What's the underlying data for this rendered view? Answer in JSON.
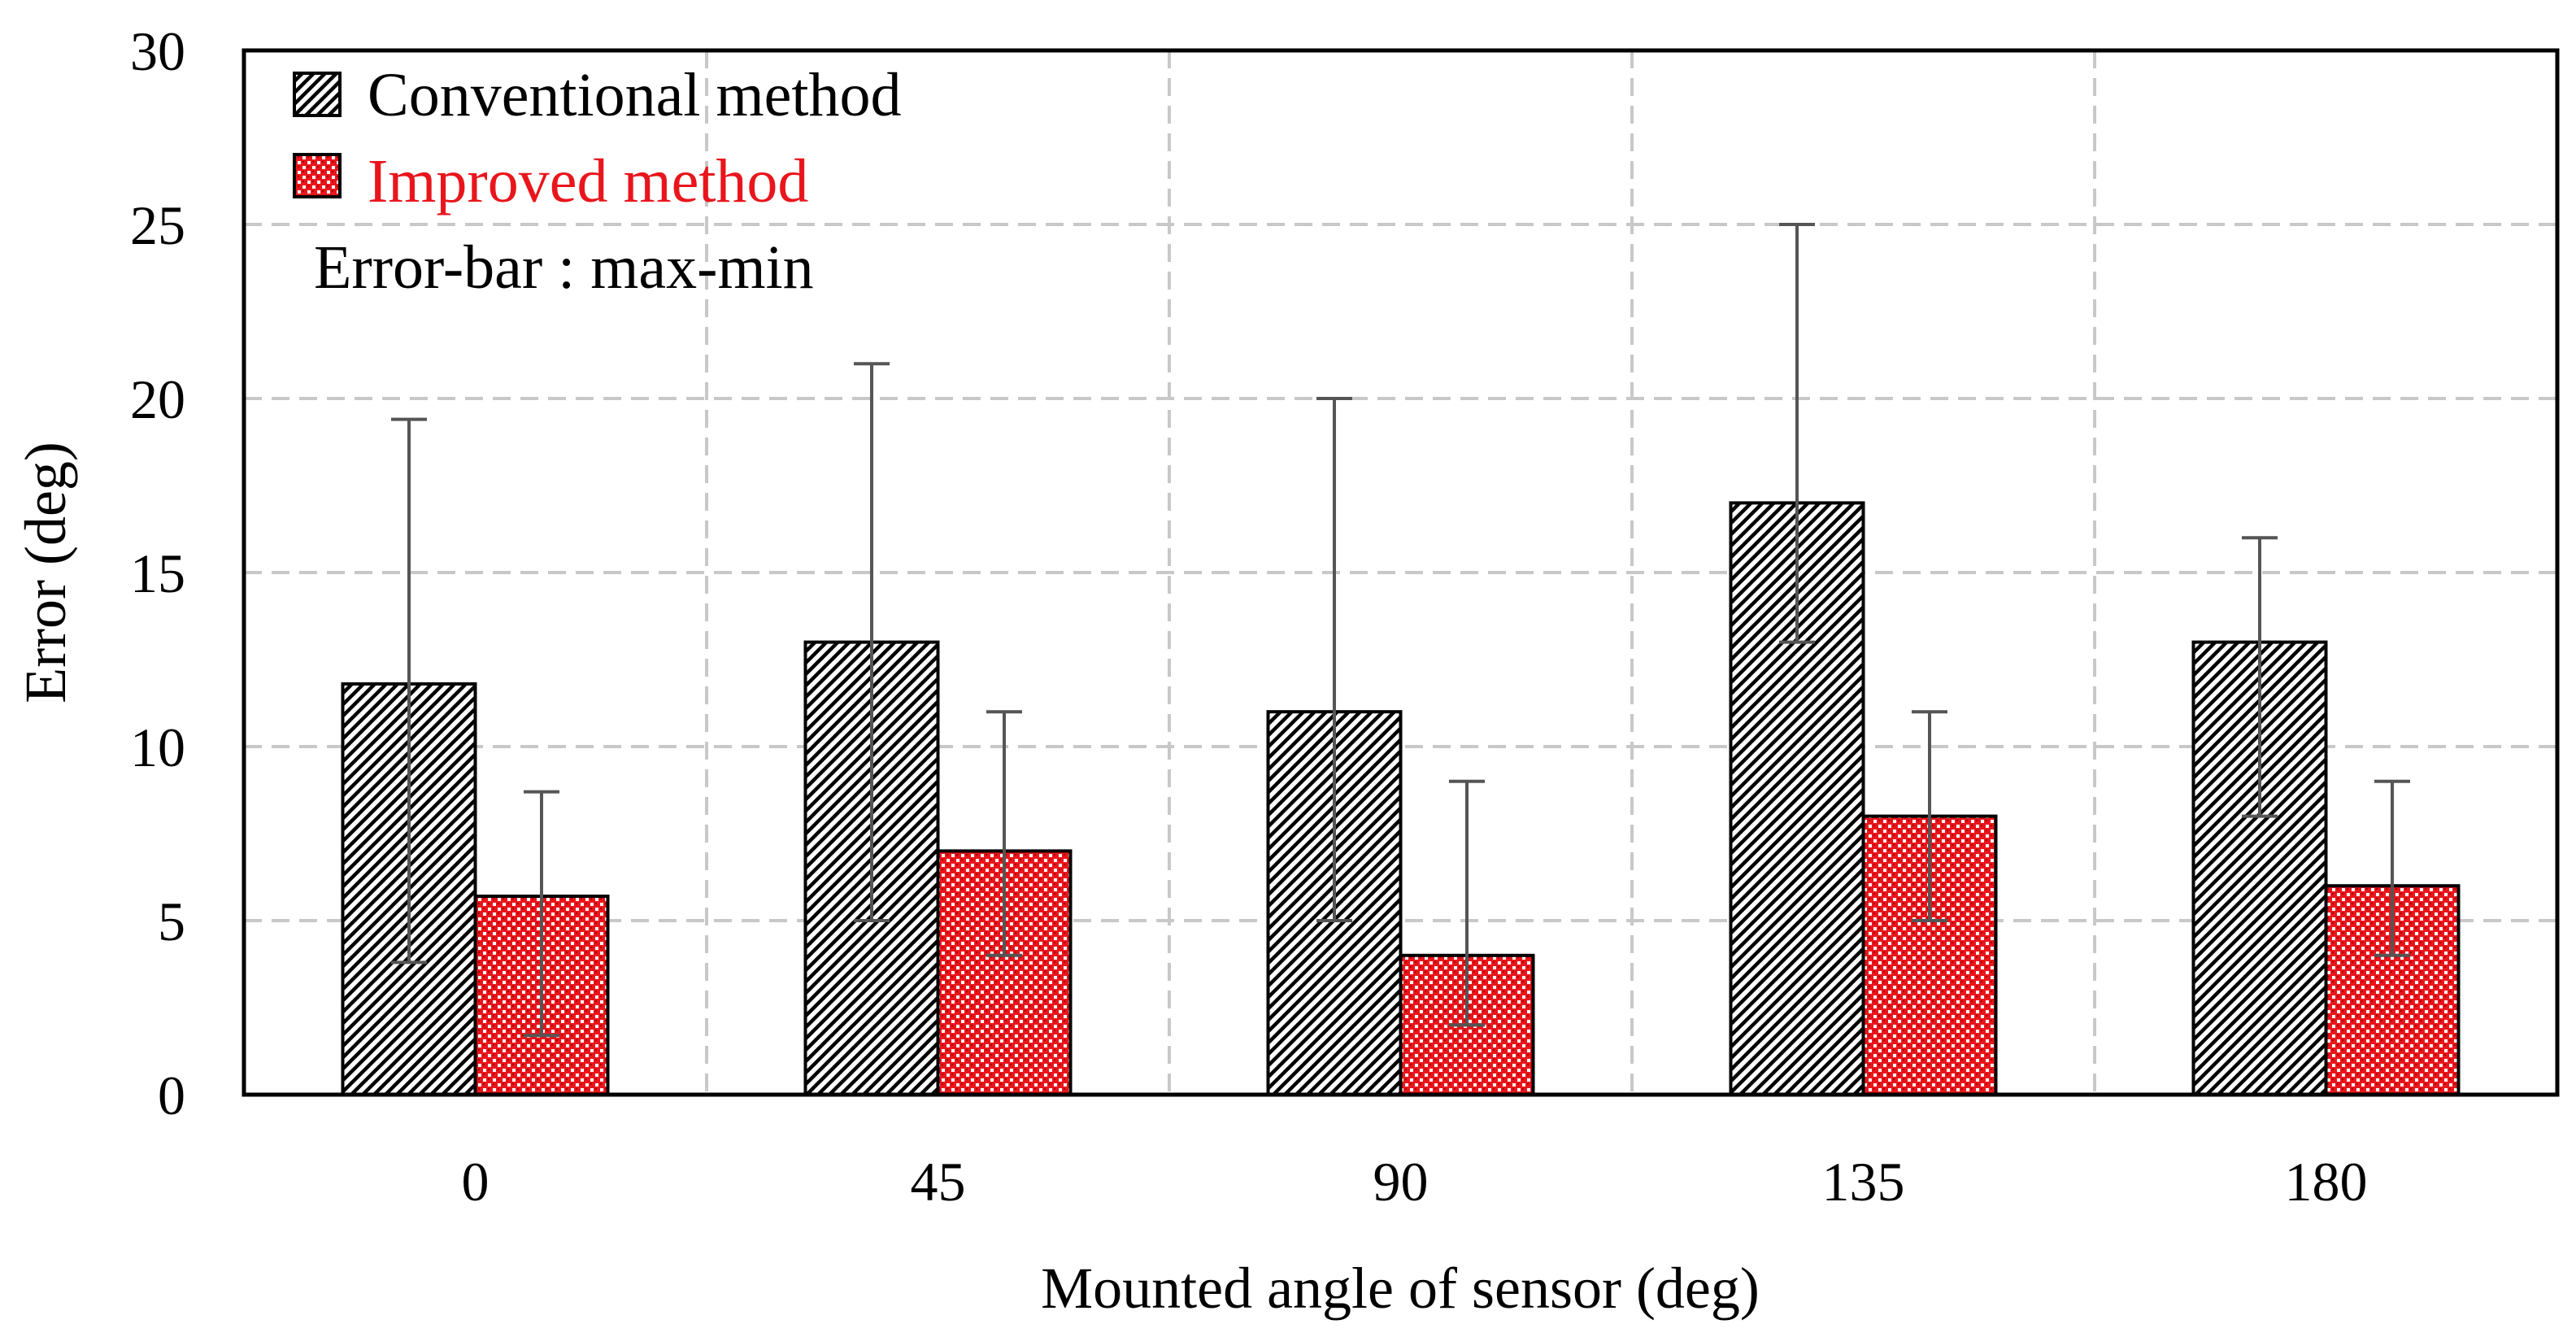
{
  "chart_data": {
    "type": "bar",
    "title": "",
    "xlabel": "Mounted angle of sensor (deg)",
    "ylabel": "Error (deg)",
    "ylim": [
      0,
      30
    ],
    "yticks": [
      "0",
      "5",
      "10",
      "15",
      "20",
      "25",
      "30"
    ],
    "grid": true,
    "categories": [
      "0",
      "45",
      "90",
      "135",
      "180"
    ],
    "series": [
      {
        "name": "Conventional method",
        "color": "#000000",
        "fill": "diagonal-hatch",
        "values": [
          11.8,
          13,
          11,
          17,
          13
        ],
        "err_min": [
          3.8,
          5,
          5,
          13,
          8
        ],
        "err_max": [
          19.4,
          21,
          20,
          25,
          16
        ]
      },
      {
        "name": "Improved method",
        "color": "#e8161c",
        "fill": "red-checker",
        "values": [
          5.7,
          7,
          4,
          8,
          6
        ],
        "err_min": [
          1.7,
          4,
          2,
          5,
          4
        ],
        "err_max": [
          8.7,
          11,
          9,
          11,
          9
        ]
      }
    ],
    "legend_position": "top-left",
    "annotation": "Error-bar : max-min"
  }
}
